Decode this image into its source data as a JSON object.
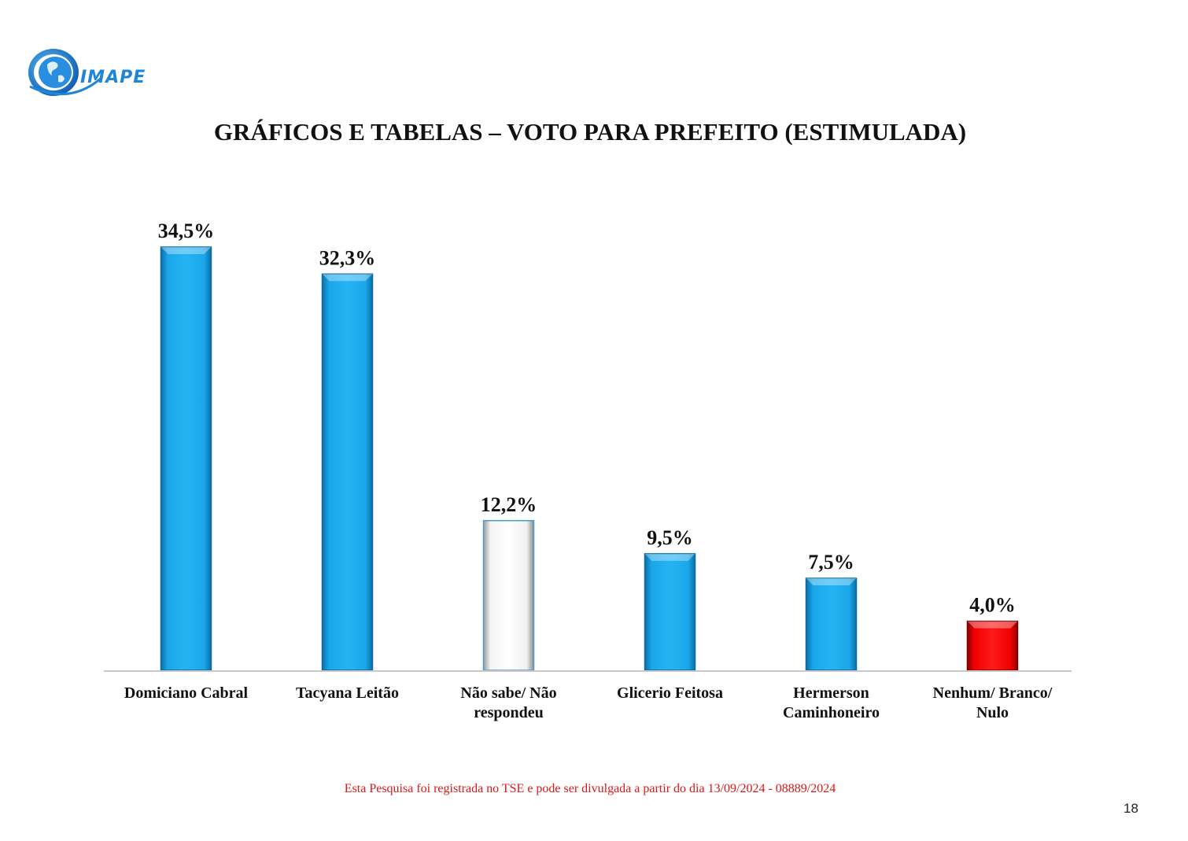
{
  "logo": {
    "text": "IMAPE",
    "icon": "globe-swoosh-logo",
    "color": "#1d86d6"
  },
  "page_title": "GRÁFICOS E TABELAS – VOTO PARA PREFEITO (ESTIMULADA)",
  "chart_data": {
    "type": "bar",
    "categories": [
      [
        "Domiciano Cabral"
      ],
      [
        "Tacyana Leitão"
      ],
      [
        "Não sabe/ Não",
        "respondeu"
      ],
      [
        "Glicerio Feitosa"
      ],
      [
        "Hermerson",
        "Caminhoneiro"
      ],
      [
        "Nenhum/ Branco/",
        "Nulo"
      ]
    ],
    "values": [
      34.5,
      32.3,
      12.2,
      9.5,
      7.5,
      4.0
    ],
    "value_labels": [
      "34,5%",
      "32,3%",
      "12,2%",
      "9,5%",
      "7,5%",
      "4,0%"
    ],
    "bar_colors": [
      "#1aa7ea",
      "#1aa7ea",
      "#ffffff",
      "#1aa7ea",
      "#1aa7ea",
      "#ff0000"
    ],
    "ylim": [
      0,
      35
    ],
    "grid": false,
    "legend": "none"
  },
  "footer_note": "Esta Pesquisa foi registrada no TSE e pode ser divulgada a partir do dia 13/09/2024 - 08889/2024",
  "page_number": "18"
}
